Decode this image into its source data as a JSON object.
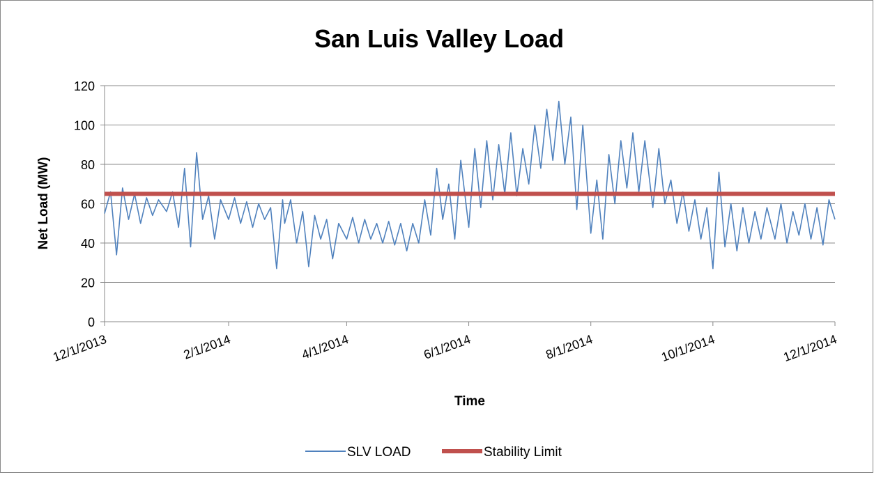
{
  "chart_data": {
    "type": "line",
    "title": "San Luis Valley Load",
    "xlabel": "Time",
    "ylabel": "Net Load (MW)",
    "ylim": [
      0,
      120
    ],
    "yticks": [
      0,
      20,
      40,
      60,
      80,
      100,
      120
    ],
    "xlim": [
      "12/1/2013",
      "12/1/2014"
    ],
    "xticks": [
      "12/1/2013",
      "2/1/2014",
      "4/1/2014",
      "6/1/2014",
      "8/1/2014",
      "10/1/2014",
      "12/1/2014"
    ],
    "grid": true,
    "legend": "bottom",
    "series": [
      {
        "name": "SLV LOAD",
        "color": "#4f81bd",
        "x": [
          "12/1/2013",
          "12/4/2013",
          "12/7/2013",
          "12/10/2013",
          "12/13/2013",
          "12/16/2013",
          "12/19/2013",
          "12/22/2013",
          "12/25/2013",
          "12/28/2013",
          "1/1/2014",
          "1/4/2014",
          "1/7/2014",
          "1/10/2014",
          "1/13/2014",
          "1/16/2014",
          "1/19/2014",
          "1/22/2014",
          "1/25/2014",
          "1/28/2014",
          "2/1/2014",
          "2/4/2014",
          "2/7/2014",
          "2/10/2014",
          "2/13/2014",
          "2/16/2014",
          "2/19/2014",
          "2/22/2014",
          "2/25/2014",
          "2/28/2014",
          "3/1/2014",
          "3/4/2014",
          "3/7/2014",
          "3/10/2014",
          "3/13/2014",
          "3/16/2014",
          "3/19/2014",
          "3/22/2014",
          "3/25/2014",
          "3/28/2014",
          "4/1/2014",
          "4/4/2014",
          "4/7/2014",
          "4/10/2014",
          "4/13/2014",
          "4/16/2014",
          "4/19/2014",
          "4/22/2014",
          "4/25/2014",
          "4/28/2014",
          "5/1/2014",
          "5/4/2014",
          "5/7/2014",
          "5/10/2014",
          "5/13/2014",
          "5/16/2014",
          "5/19/2014",
          "5/22/2014",
          "5/25/2014",
          "5/28/2014",
          "6/1/2014",
          "6/4/2014",
          "6/7/2014",
          "6/10/2014",
          "6/13/2014",
          "6/16/2014",
          "6/19/2014",
          "6/22/2014",
          "6/25/2014",
          "6/28/2014",
          "7/1/2014",
          "7/4/2014",
          "7/7/2014",
          "7/10/2014",
          "7/13/2014",
          "7/16/2014",
          "7/19/2014",
          "7/22/2014",
          "7/25/2014",
          "7/28/2014",
          "8/1/2014",
          "8/4/2014",
          "8/7/2014",
          "8/10/2014",
          "8/13/2014",
          "8/16/2014",
          "8/19/2014",
          "8/22/2014",
          "8/25/2014",
          "8/28/2014",
          "9/1/2014",
          "9/4/2014",
          "9/7/2014",
          "9/10/2014",
          "9/13/2014",
          "9/16/2014",
          "9/19/2014",
          "9/22/2014",
          "9/25/2014",
          "9/28/2014",
          "10/1/2014",
          "10/4/2014",
          "10/7/2014",
          "10/10/2014",
          "10/13/2014",
          "10/16/2014",
          "10/19/2014",
          "10/22/2014",
          "10/25/2014",
          "10/28/2014",
          "11/1/2014",
          "11/4/2014",
          "11/7/2014",
          "11/10/2014",
          "11/13/2014",
          "11/16/2014",
          "11/19/2014",
          "11/22/2014",
          "11/25/2014",
          "11/28/2014",
          "12/1/2014"
        ],
        "values": [
          55,
          66,
          34,
          68,
          52,
          65,
          50,
          63,
          54,
          62,
          56,
          66,
          48,
          78,
          38,
          86,
          52,
          64,
          42,
          62,
          52,
          63,
          50,
          61,
          48,
          60,
          52,
          58,
          27,
          62,
          50,
          62,
          40,
          56,
          28,
          54,
          42,
          52,
          32,
          50,
          42,
          53,
          40,
          52,
          42,
          50,
          40,
          51,
          39,
          50,
          36,
          50,
          40,
          62,
          44,
          78,
          52,
          70,
          42,
          82,
          48,
          88,
          58,
          92,
          62,
          90,
          65,
          96,
          64,
          88,
          70,
          100,
          78,
          108,
          82,
          112,
          80,
          104,
          57,
          100,
          45,
          72,
          42,
          85,
          60,
          92,
          68,
          96,
          66,
          92,
          58,
          88,
          60,
          72,
          50,
          66,
          46,
          62,
          42,
          58,
          27,
          76,
          38,
          60,
          36,
          58,
          40,
          56,
          42,
          58,
          42,
          60,
          40,
          56,
          44,
          60,
          42,
          58,
          39,
          62,
          52
        ]
      },
      {
        "name": "Stability Limit",
        "color": "#c0504d",
        "x": [
          "12/1/2013",
          "12/1/2014"
        ],
        "values": [
          65,
          65
        ]
      }
    ]
  }
}
